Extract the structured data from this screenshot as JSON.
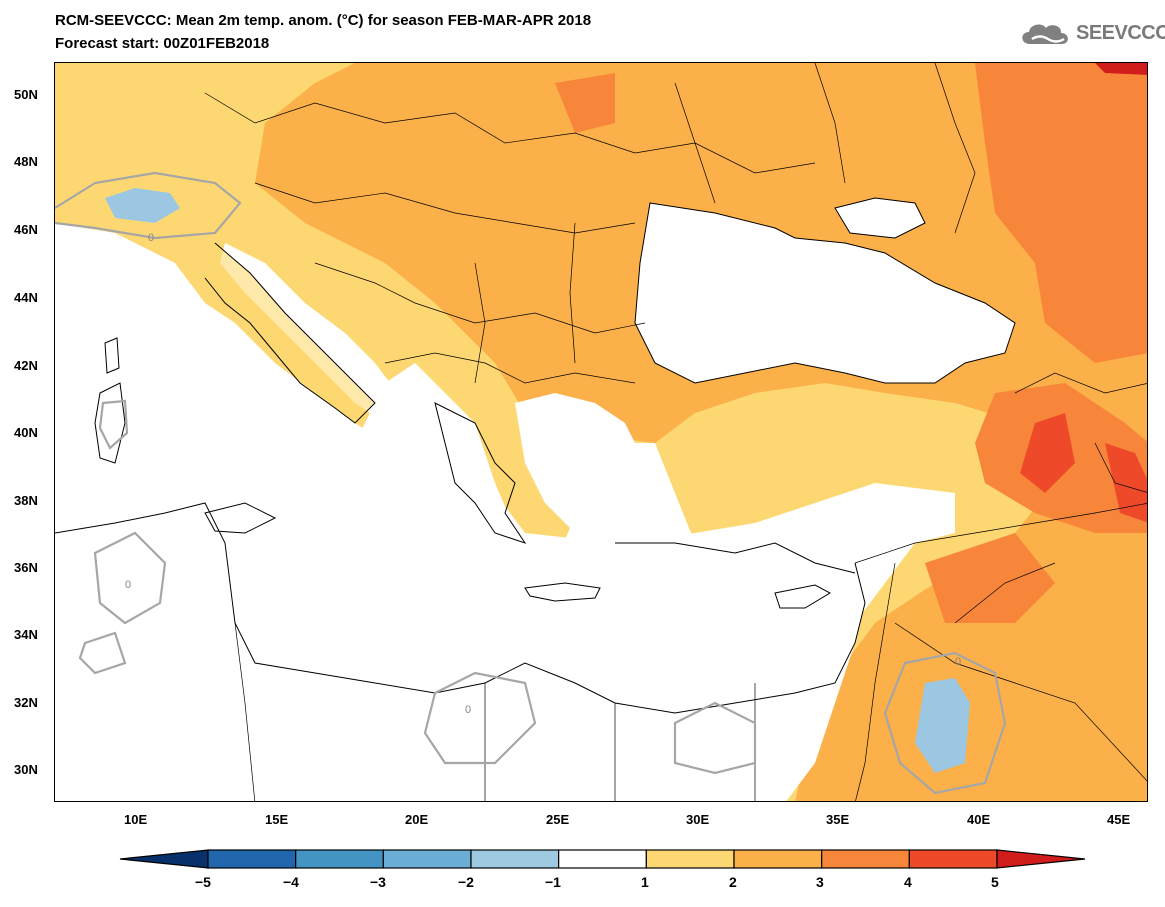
{
  "header": {
    "title": "RCM-SEEVCCC: Mean 2m temp. anom. (°C) for season FEB-MAR-APR 2018",
    "subtitle": "Forecast start: 00Z01FEB2018",
    "logo_text": "SEEVCCC"
  },
  "map": {
    "lat_labels": [
      "50N",
      "48N",
      "46N",
      "44N",
      "42N",
      "40N",
      "38N",
      "36N",
      "34N",
      "32N",
      "30N"
    ],
    "lon_labels": [
      "10E",
      "15E",
      "20E",
      "25E",
      "30E",
      "35E",
      "40E",
      "45E"
    ],
    "contour_label": "0",
    "colors": {
      "sea": "#ffffff",
      "neutral": "#ffffff",
      "warm1": "#fdd872",
      "warm2": "#fbb049",
      "warm3": "#f8863a",
      "warm4": "#ee4a2a",
      "warm5": "#d01c1a",
      "cool1": "#9bc7e2",
      "cool2": "#6aa9d6",
      "contour": "#a6a6a6",
      "border": "#000000"
    }
  },
  "colorbar": {
    "ticks": [
      "−5",
      "−4",
      "−3",
      "−2",
      "−1",
      "1",
      "2",
      "3",
      "4",
      "5"
    ],
    "colors": [
      "#08306b",
      "#2166ac",
      "#4393c3",
      "#6aaed6",
      "#9ecae1",
      "#ffffff",
      "#fdd872",
      "#fbb049",
      "#f8863a",
      "#ee4a2a",
      "#d01c1a"
    ]
  }
}
